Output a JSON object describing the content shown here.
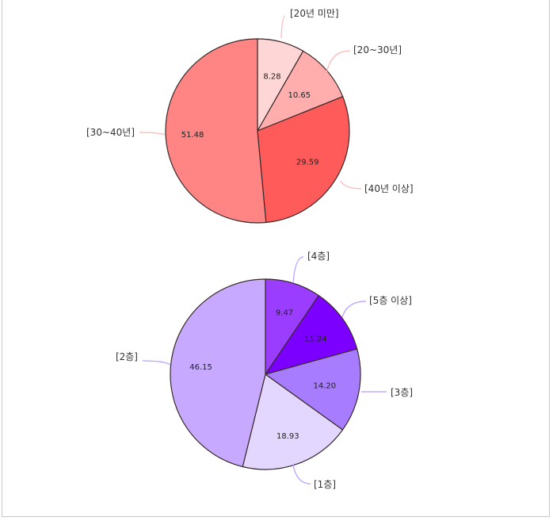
{
  "chart_data": [
    {
      "type": "pie",
      "categories": [
        "[20년 미만]",
        "[20~30년]",
        "[40년 이상]",
        "[30~40년]"
      ],
      "values": [
        8.28,
        10.65,
        29.59,
        51.48
      ],
      "value_labels": [
        "8.28",
        "10.65",
        "29.59",
        "51.48"
      ],
      "colors": [
        "#ffd6d6",
        "#ffadad",
        "#ff5b5b",
        "#ff8585"
      ],
      "leader_color": "#ffb3b3"
    },
    {
      "type": "pie",
      "categories": [
        "[4층]",
        "[5층 이상]",
        "[3층]",
        "[1층]",
        "[2층]"
      ],
      "values": [
        9.47,
        11.24,
        14.2,
        18.93,
        46.15
      ],
      "value_labels": [
        "9.47",
        "11.24",
        "14.20",
        "18.93",
        "46.15"
      ],
      "colors": [
        "#9b3dff",
        "#7b00ff",
        "#a87cff",
        "#e3d6ff",
        "#c7aaff"
      ],
      "leader_color": "#b89cff"
    }
  ]
}
